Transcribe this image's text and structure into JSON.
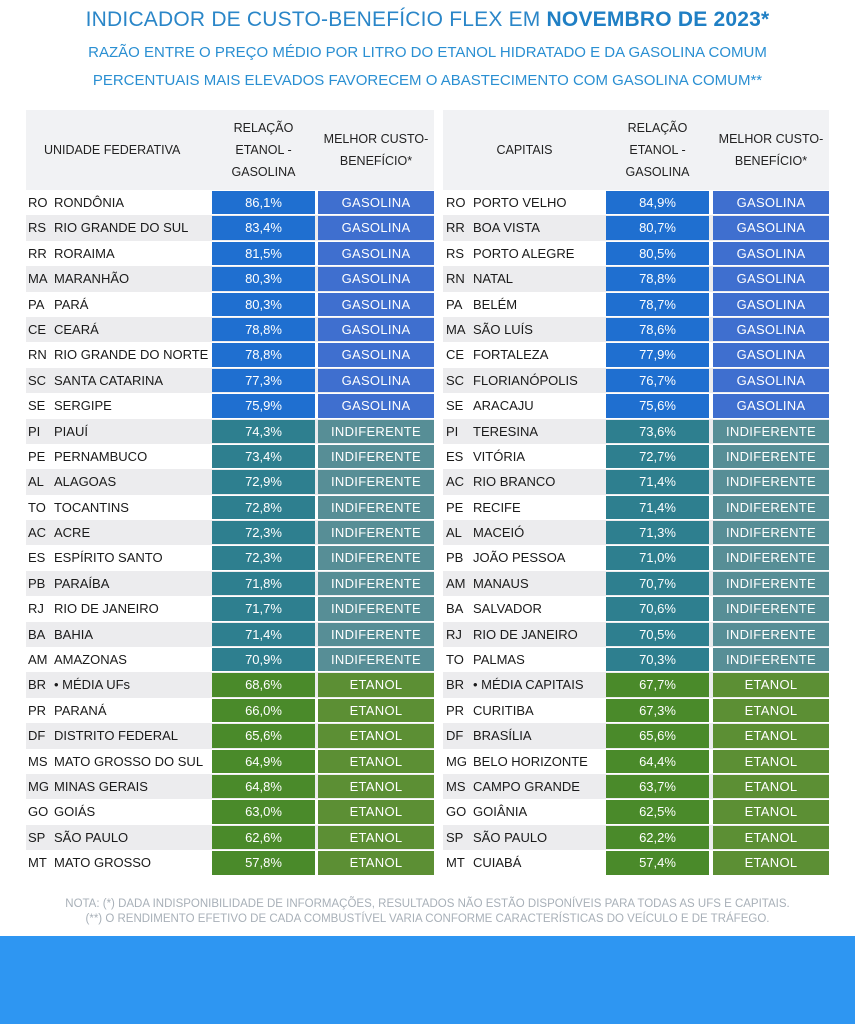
{
  "title": {
    "part1": "INDICADOR DE CUSTO-BENEFÍCIO FLEX EM ",
    "part2": "NOVEMBRO DE 2023*"
  },
  "subtitle1": "RAZÃO ENTRE O PREÇO MÉDIO POR LITRO DO ETANOL HIDRATADO E DA GASOLINA COMUM",
  "subtitle2": "PERCENTUAIS MAIS ELEVADOS FAVORECEM O ABASTECIMENTO COM GASOLINA COMUM**",
  "colors": {
    "gasolina_value": "#1f6fd0",
    "gasolina_result": "#3f6fcf",
    "indiferente_value": "#2e7f8f",
    "indiferente_result": "#578e96",
    "etanol_value": "#4a8a2a",
    "etanol_result": "#5c8f34",
    "footer": "#2e96f2"
  },
  "left_table": {
    "headers": {
      "col1": "UNIDADE FEDERATIVA",
      "col2": "RELAÇÃO ETANOL - GASOLINA",
      "col3": "MELHOR CUSTO-BENEFÍCIO*"
    },
    "rows": [
      {
        "uf": "RO",
        "name": "RONDÔNIA",
        "value": "86,1%",
        "result": "GASOLINA",
        "cat": "g"
      },
      {
        "uf": "RS",
        "name": "RIO GRANDE DO SUL",
        "value": "83,4%",
        "result": "GASOLINA",
        "cat": "g"
      },
      {
        "uf": "RR",
        "name": "RORAIMA",
        "value": "81,5%",
        "result": "GASOLINA",
        "cat": "g"
      },
      {
        "uf": "MA",
        "name": "MARANHÃO",
        "value": "80,3%",
        "result": "GASOLINA",
        "cat": "g"
      },
      {
        "uf": "PA",
        "name": "PARÁ",
        "value": "80,3%",
        "result": "GASOLINA",
        "cat": "g"
      },
      {
        "uf": "CE",
        "name": "CEARÁ",
        "value": "78,8%",
        "result": "GASOLINA",
        "cat": "g"
      },
      {
        "uf": "RN",
        "name": "RIO GRANDE DO NORTE",
        "value": "78,8%",
        "result": "GASOLINA",
        "cat": "g"
      },
      {
        "uf": "SC",
        "name": "SANTA CATARINA",
        "value": "77,3%",
        "result": "GASOLINA",
        "cat": "g"
      },
      {
        "uf": "SE",
        "name": "SERGIPE",
        "value": "75,9%",
        "result": "GASOLINA",
        "cat": "g"
      },
      {
        "uf": "PI",
        "name": "PIAUÍ",
        "value": "74,3%",
        "result": "INDIFERENTE",
        "cat": "i"
      },
      {
        "uf": "PE",
        "name": "PERNAMBUCO",
        "value": "73,4%",
        "result": "INDIFERENTE",
        "cat": "i"
      },
      {
        "uf": "AL",
        "name": "ALAGOAS",
        "value": "72,9%",
        "result": "INDIFERENTE",
        "cat": "i"
      },
      {
        "uf": "TO",
        "name": "TOCANTINS",
        "value": "72,8%",
        "result": "INDIFERENTE",
        "cat": "i"
      },
      {
        "uf": "AC",
        "name": "ACRE",
        "value": "72,3%",
        "result": "INDIFERENTE",
        "cat": "i"
      },
      {
        "uf": "ES",
        "name": "ESPÍRITO SANTO",
        "value": "72,3%",
        "result": "INDIFERENTE",
        "cat": "i"
      },
      {
        "uf": "PB",
        "name": "PARAÍBA",
        "value": "71,8%",
        "result": "INDIFERENTE",
        "cat": "i"
      },
      {
        "uf": "RJ",
        "name": "RIO DE JANEIRO",
        "value": "71,7%",
        "result": "INDIFERENTE",
        "cat": "i"
      },
      {
        "uf": "BA",
        "name": "BAHIA",
        "value": "71,4%",
        "result": "INDIFERENTE",
        "cat": "i"
      },
      {
        "uf": "AM",
        "name": "AMAZONAS",
        "value": "70,9%",
        "result": "INDIFERENTE",
        "cat": "i"
      },
      {
        "uf": "BR",
        "name": "• MÉDIA UFs",
        "value": "68,6%",
        "result": "ETANOL",
        "cat": "e"
      },
      {
        "uf": "PR",
        "name": "PARANÁ",
        "value": "66,0%",
        "result": "ETANOL",
        "cat": "e"
      },
      {
        "uf": "DF",
        "name": "DISTRITO FEDERAL",
        "value": "65,6%",
        "result": "ETANOL",
        "cat": "e"
      },
      {
        "uf": "MS",
        "name": "MATO GROSSO DO SUL",
        "value": "64,9%",
        "result": "ETANOL",
        "cat": "e"
      },
      {
        "uf": "MG",
        "name": "MINAS GERAIS",
        "value": "64,8%",
        "result": "ETANOL",
        "cat": "e"
      },
      {
        "uf": "GO",
        "name": "GOIÁS",
        "value": "63,0%",
        "result": "ETANOL",
        "cat": "e"
      },
      {
        "uf": "SP",
        "name": "SÃO PAULO",
        "value": "62,6%",
        "result": "ETANOL",
        "cat": "e"
      },
      {
        "uf": "MT",
        "name": "MATO GROSSO",
        "value": "57,8%",
        "result": "ETANOL",
        "cat": "e"
      }
    ]
  },
  "right_table": {
    "headers": {
      "col1": "CAPITAIS",
      "col2": "RELAÇÃO ETANOL - GASOLINA",
      "col3": "MELHOR CUSTO-BENEFÍCIO*"
    },
    "rows": [
      {
        "uf": "RO",
        "name": "PORTO VELHO",
        "value": "84,9%",
        "result": "GASOLINA",
        "cat": "g"
      },
      {
        "uf": "RR",
        "name": "BOA VISTA",
        "value": "80,7%",
        "result": "GASOLINA",
        "cat": "g"
      },
      {
        "uf": "RS",
        "name": "PORTO ALEGRE",
        "value": "80,5%",
        "result": "GASOLINA",
        "cat": "g"
      },
      {
        "uf": "RN",
        "name": "NATAL",
        "value": "78,8%",
        "result": "GASOLINA",
        "cat": "g"
      },
      {
        "uf": "PA",
        "name": "BELÉM",
        "value": "78,7%",
        "result": "GASOLINA",
        "cat": "g"
      },
      {
        "uf": "MA",
        "name": "SÃO LUÍS",
        "value": "78,6%",
        "result": "GASOLINA",
        "cat": "g"
      },
      {
        "uf": "CE",
        "name": "FORTALEZA",
        "value": "77,9%",
        "result": "GASOLINA",
        "cat": "g"
      },
      {
        "uf": "SC",
        "name": "FLORIANÓPOLIS",
        "value": "76,7%",
        "result": "GASOLINA",
        "cat": "g"
      },
      {
        "uf": "SE",
        "name": "ARACAJU",
        "value": "75,6%",
        "result": "GASOLINA",
        "cat": "g"
      },
      {
        "uf": "PI",
        "name": "TERESINA",
        "value": "73,6%",
        "result": "INDIFERENTE",
        "cat": "i"
      },
      {
        "uf": "ES",
        "name": "VITÓRIA",
        "value": "72,7%",
        "result": "INDIFERENTE",
        "cat": "i"
      },
      {
        "uf": "AC",
        "name": "RIO BRANCO",
        "value": "71,4%",
        "result": "INDIFERENTE",
        "cat": "i"
      },
      {
        "uf": "PE",
        "name": "RECIFE",
        "value": "71,4%",
        "result": "INDIFERENTE",
        "cat": "i"
      },
      {
        "uf": "AL",
        "name": "MACEIÓ",
        "value": "71,3%",
        "result": "INDIFERENTE",
        "cat": "i"
      },
      {
        "uf": "PB",
        "name": "JOÃO PESSOA",
        "value": "71,0%",
        "result": "INDIFERENTE",
        "cat": "i"
      },
      {
        "uf": "AM",
        "name": "MANAUS",
        "value": "70,7%",
        "result": "INDIFERENTE",
        "cat": "i"
      },
      {
        "uf": "BA",
        "name": "SALVADOR",
        "value": "70,6%",
        "result": "INDIFERENTE",
        "cat": "i"
      },
      {
        "uf": "RJ",
        "name": "RIO DE JANEIRO",
        "value": "70,5%",
        "result": "INDIFERENTE",
        "cat": "i"
      },
      {
        "uf": "TO",
        "name": "PALMAS",
        "value": "70,3%",
        "result": "INDIFERENTE",
        "cat": "i"
      },
      {
        "uf": "BR",
        "name": "• MÉDIA CAPITAIS",
        "value": "67,7%",
        "result": "ETANOL",
        "cat": "e"
      },
      {
        "uf": "PR",
        "name": "CURITIBA",
        "value": "67,3%",
        "result": "ETANOL",
        "cat": "e"
      },
      {
        "uf": "DF",
        "name": "BRASÍLIA",
        "value": "65,6%",
        "result": "ETANOL",
        "cat": "e"
      },
      {
        "uf": "MG",
        "name": "BELO HORIZONTE",
        "value": "64,4%",
        "result": "ETANOL",
        "cat": "e"
      },
      {
        "uf": "MS",
        "name": "CAMPO GRANDE",
        "value": "63,7%",
        "result": "ETANOL",
        "cat": "e"
      },
      {
        "uf": "GO",
        "name": "GOIÂNIA",
        "value": "62,5%",
        "result": "ETANOL",
        "cat": "e"
      },
      {
        "uf": "SP",
        "name": "SÃO PAULO",
        "value": "62,2%",
        "result": "ETANOL",
        "cat": "e"
      },
      {
        "uf": "MT",
        "name": "CUIABÁ",
        "value": "57,4%",
        "result": "ETANOL",
        "cat": "e"
      }
    ]
  },
  "note1": "NOTA: (*) DADA INDISPONIBILIDADE DE INFORMAÇÕES, RESULTADOS NÃO ESTÃO DISPONÍVEIS PARA TODAS AS UFS E CAPITAIS.",
  "note2": "(**) O RENDIMENTO EFETIVO DE CADA COMBUSTÍVEL VARIA CONFORME CARACTERÍSTICAS DO VEÍCULO E DE TRÁFEGO."
}
